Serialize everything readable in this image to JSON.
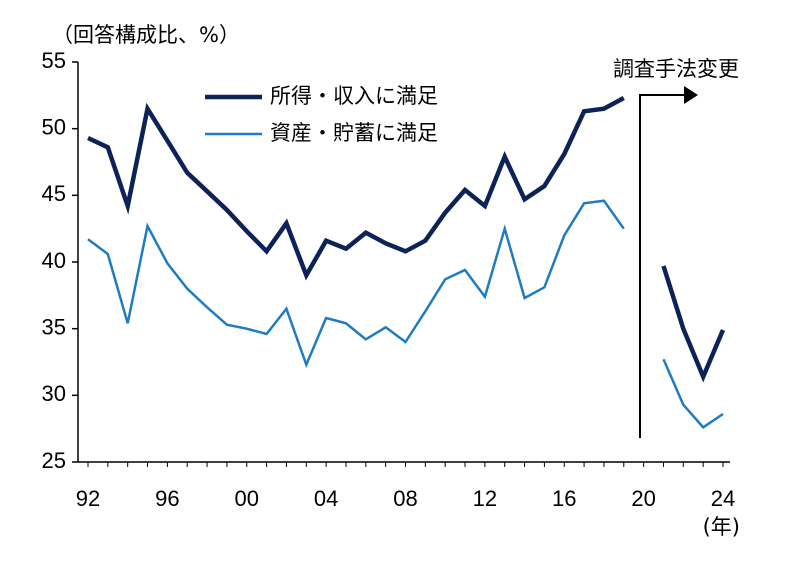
{
  "chart_data": {
    "type": "line",
    "unit_label": "（回答構成比、%）",
    "x_unit_label": "(年)",
    "annotation": "調査手法変更",
    "categories": [
      "92",
      null,
      null,
      null,
      "96",
      null,
      null,
      null,
      "00",
      null,
      null,
      null,
      "04",
      null,
      null,
      null,
      "08",
      null,
      null,
      null,
      "12",
      null,
      null,
      null,
      "16",
      null,
      null,
      null,
      "20",
      null,
      null,
      null,
      "24"
    ],
    "series": [
      {
        "name": "所得・収入に満足",
        "color": "#0d2257",
        "values": [
          49.3,
          48.6,
          44.2,
          51.5,
          49.1,
          46.7,
          45.3,
          43.9,
          42.3,
          40.8,
          42.9,
          39.0,
          41.6,
          41.0,
          42.2,
          41.4,
          40.8,
          41.6,
          43.7,
          45.4,
          44.2,
          47.9,
          44.7,
          45.7,
          48.1,
          51.3,
          51.5,
          52.3,
          null,
          39.7,
          35.0,
          31.4,
          34.9
        ]
      },
      {
        "name": "資産・貯蓄に満足",
        "color": "#1f7cc1",
        "values": [
          41.7,
          40.6,
          35.4,
          42.7,
          39.9,
          38.0,
          36.6,
          35.3,
          35.0,
          34.6,
          36.5,
          32.3,
          35.8,
          35.4,
          34.2,
          35.1,
          34.0,
          36.3,
          38.7,
          39.4,
          37.4,
          42.5,
          37.3,
          38.1,
          42.0,
          44.4,
          44.6,
          42.5,
          null,
          32.7,
          29.3,
          27.6,
          28.6
        ]
      }
    ],
    "ylim": [
      25,
      55
    ],
    "yticks": [
      25,
      30,
      35,
      40,
      45,
      50,
      55
    ]
  }
}
